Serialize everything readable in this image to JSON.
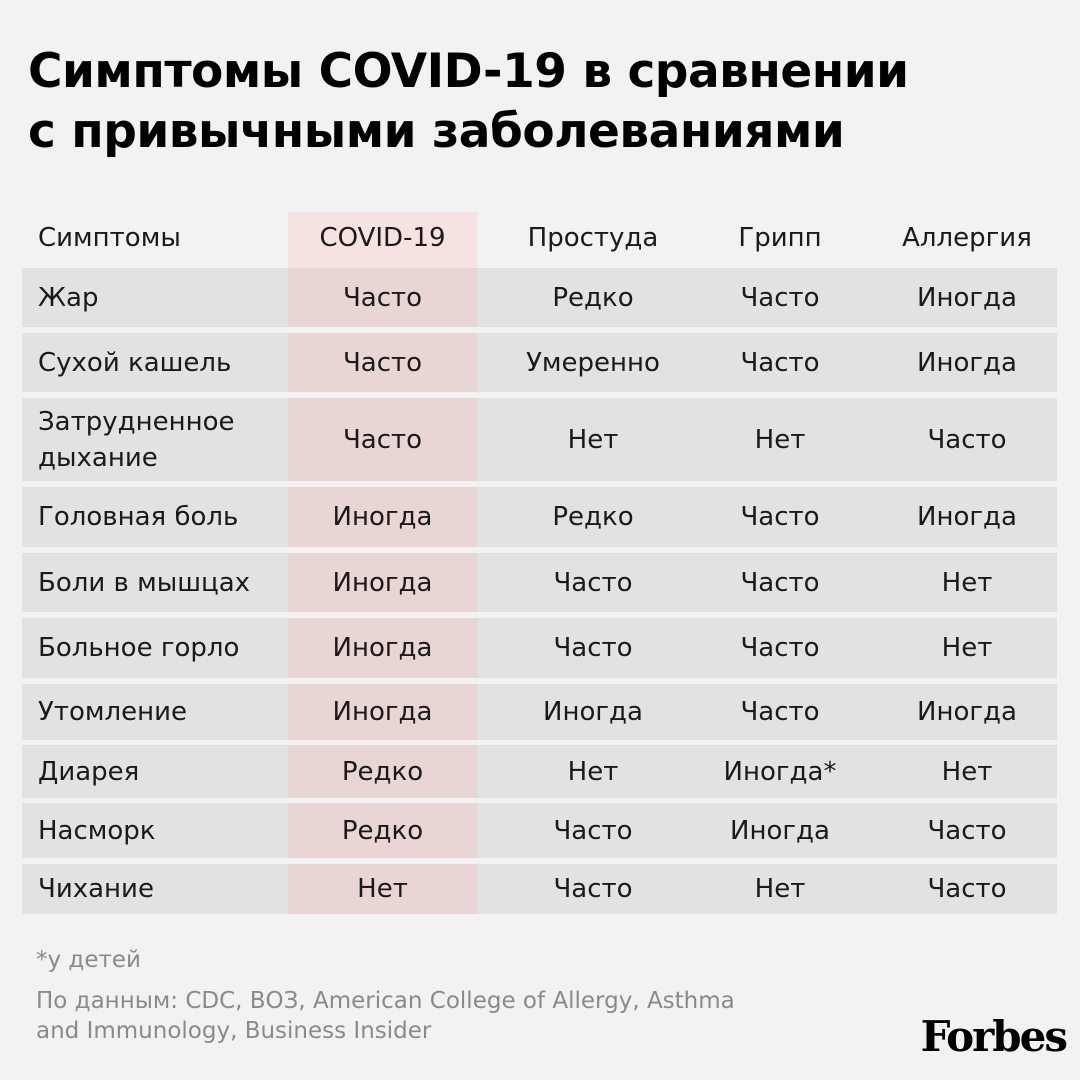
{
  "title": [
    "Симптомы COVID-19 в сравнении",
    "с привычными заболеваниями"
  ],
  "table": {
    "header": [
      "Симптомы",
      "COVID-19",
      "Простуда",
      "Грипп",
      "Аллергия"
    ],
    "rows": [
      [
        "Жар",
        "Часто",
        "Редко",
        "Часто",
        "Иногда"
      ],
      [
        "Сухой кашель",
        "Часто",
        "Умеренно",
        "Часто",
        "Иногда"
      ],
      [
        "Затрудненное дыхание",
        "Часто",
        "Нет",
        "Нет",
        "Часто"
      ],
      [
        "Головная боль",
        "Иногда",
        "Редко",
        "Часто",
        "Иногда"
      ],
      [
        "Боли в мышцах",
        "Иногда",
        "Часто",
        "Часто",
        "Нет"
      ],
      [
        "Больное горло",
        "Иногда",
        "Часто",
        "Часто",
        "Нет"
      ],
      [
        "Утомление",
        "Иногда",
        "Иногда",
        "Часто",
        "Иногда"
      ],
      [
        "Диарея",
        "Редко",
        "Нет",
        "Иногда*",
        "Нет"
      ],
      [
        "Насморк",
        "Редко",
        "Часто",
        "Иногда",
        "Часто"
      ],
      [
        "Чихание",
        "Нет",
        "Часто",
        "Нет",
        "Часто"
      ]
    ]
  },
  "footnote": "*у детей",
  "source": [
    "По данным: CDC, ВОЗ, American College of Allergy, Asthma",
    "and Immunology, Business Insider"
  ],
  "logo": "Forbes"
}
